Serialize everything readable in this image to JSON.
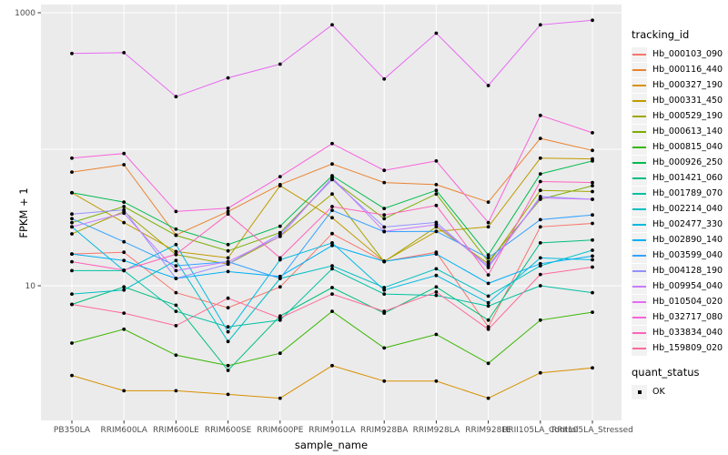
{
  "figure": {
    "panel_bg": "#EBEBEB",
    "grid_color": "#FFFFFF",
    "tick_color": "#333333",
    "tick_label_color": "#4D4D4D",
    "point_color": "#000000",
    "legend_key_bg": "#F2F2F2"
  },
  "chart_data": {
    "type": "line",
    "title": "",
    "xlabel": "sample_name",
    "ylabel": "FPKM + 1",
    "y_scale": "log10",
    "y_ticks": [
      10,
      1000
    ],
    "y_gridlines": [
      10,
      100,
      1000
    ],
    "ylim": [
      1,
      1150
    ],
    "grid": true,
    "legend_title": "tracking_id",
    "legend_position": "right",
    "point_legend": {
      "title": "quant_status",
      "label": "OK"
    },
    "categories": [
      "PB350LA",
      "RRIM600LA",
      "RRIM600LE",
      "RRIM600SE",
      "RRIM600PE",
      "RRIM901LA",
      "RRIM928BA",
      "RRIM928LA",
      "RRIM928LE",
      "RRII105LA_Control",
      "RRII105LA_Stressed"
    ],
    "series": [
      {
        "name": "Hb_000103_090",
        "color": "#F8766D",
        "values": [
          17.1,
          17.6,
          8.9,
          6.9,
          9.8,
          24.1,
          15.1,
          17.6,
          5.0,
          27.0,
          28.6
        ]
      },
      {
        "name": "Hb_000116_440",
        "color": "#EA8331",
        "values": [
          68,
          77,
          23.5,
          35,
          55,
          78,
          57,
          55,
          41,
          120,
          98
        ]
      },
      {
        "name": "Hb_000327_190",
        "color": "#D89000",
        "values": [
          2.2,
          1.7,
          1.7,
          1.6,
          1.5,
          2.6,
          2.0,
          2.0,
          1.5,
          2.3,
          2.5
        ]
      },
      {
        "name": "Hb_000331_450",
        "color": "#C09B00",
        "values": [
          48,
          29,
          17.8,
          16,
          54,
          31.5,
          15.1,
          25,
          27,
          86,
          85
        ]
      },
      {
        "name": "Hb_000529_190",
        "color": "#A3A500",
        "values": [
          24,
          35,
          16.9,
          14.4,
          23,
          47,
          15,
          27,
          14.5,
          50,
          49
        ]
      },
      {
        "name": "Hb_000613_140",
        "color": "#7CAE00",
        "values": [
          29,
          38,
          23.4,
          18,
          24.5,
          60,
          31,
          47,
          15,
          43,
          54
        ]
      },
      {
        "name": "Hb_000815_040",
        "color": "#39B600",
        "values": [
          3.8,
          4.8,
          3.1,
          2.6,
          3.2,
          6.5,
          3.5,
          4.4,
          2.7,
          5.6,
          6.4
        ]
      },
      {
        "name": "Hb_000926_250",
        "color": "#00BB4E",
        "values": [
          48,
          41,
          26,
          20,
          27.3,
          64,
          36.8,
          50,
          16.8,
          66,
          82
        ]
      },
      {
        "name": "Hb_001421_060",
        "color": "#00BF7D",
        "values": [
          7.3,
          9.8,
          7.2,
          2.4,
          6.0,
          9.7,
          6.3,
          9.8,
          5.6,
          20.6,
          21.6
        ]
      },
      {
        "name": "Hb_001789_070",
        "color": "#00C1A3",
        "values": [
          12.9,
          12.9,
          6.5,
          5.0,
          5.6,
          13.3,
          8.7,
          8.5,
          7.1,
          10.0,
          8.9
        ]
      },
      {
        "name": "Hb_002214_040",
        "color": "#00BFC4",
        "values": [
          8.7,
          9.3,
          15.3,
          3.9,
          11.3,
          14.0,
          9.7,
          13.3,
          8.4,
          14.0,
          18.2
        ]
      },
      {
        "name": "Hb_002477_330",
        "color": "#00BAE0",
        "values": [
          27,
          12.9,
          20,
          4.6,
          15.5,
          20.6,
          9.3,
          11.9,
          7.5,
          16,
          15.5
        ]
      },
      {
        "name": "Hb_002890_140",
        "color": "#00B0F6",
        "values": [
          17.1,
          15.3,
          11.3,
          12.7,
          11.7,
          19.7,
          15.1,
          17.1,
          10.4,
          14.5,
          16.5
        ]
      },
      {
        "name": "Hb_003599_040",
        "color": "#35A2FF",
        "values": [
          31,
          21,
          14,
          15,
          11.3,
          35.7,
          24.9,
          25,
          16,
          30.5,
          33
        ]
      },
      {
        "name": "Hb_004128_190",
        "color": "#9590FF",
        "values": [
          33.5,
          36,
          11.3,
          14.4,
          24,
          60,
          26.9,
          29.1,
          13.6,
          45,
          43
        ]
      },
      {
        "name": "Hb_009954_040",
        "color": "#C77CFF",
        "values": [
          27,
          34,
          12.9,
          15,
          23,
          62,
          25,
          28,
          14,
          44,
          43
        ]
      },
      {
        "name": "Hb_010504_020",
        "color": "#E76BF3",
        "values": [
          503,
          510,
          243,
          333,
          420,
          815,
          327,
          708,
          293,
          815,
          881
        ]
      },
      {
        "name": "Hb_032717_080",
        "color": "#FA62DB",
        "values": [
          86,
          93,
          35,
          37,
          63,
          110,
          70,
          82,
          29,
          177,
          132
        ]
      },
      {
        "name": "Hb_033834_040",
        "color": "#FF62BC",
        "values": [
          15,
          13,
          17,
          33.5,
          16,
          38,
          33,
          38.7,
          12,
          58,
          57
        ]
      },
      {
        "name": "Hb_159809_020",
        "color": "#FF6A98",
        "values": [
          7.3,
          6.3,
          5.1,
          8.1,
          5.8,
          8.7,
          6.5,
          9.0,
          4.8,
          12.1,
          13.7
        ]
      }
    ]
  }
}
